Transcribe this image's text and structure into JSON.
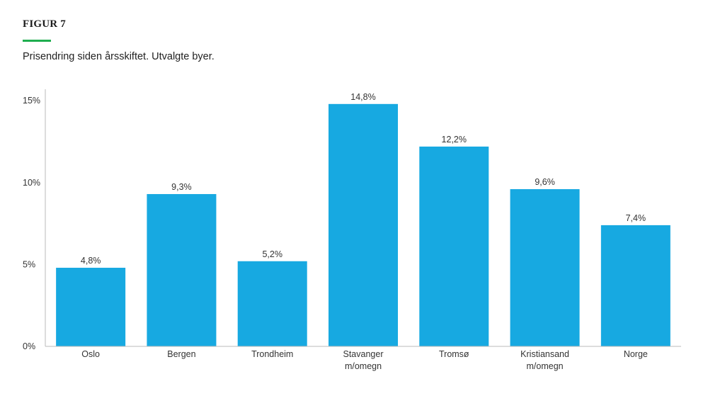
{
  "figure": {
    "label": "FIGUR 7",
    "subtitle": "Prisendring siden årsskiftet. Utvalgte byer.",
    "accent_color": "#1fae4f"
  },
  "chart_data": {
    "type": "bar",
    "categories": [
      [
        "Oslo"
      ],
      [
        "Bergen"
      ],
      [
        "Trondheim"
      ],
      [
        "Stavanger",
        "m/omegn"
      ],
      [
        "Tromsø"
      ],
      [
        "Kristiansand",
        "m/omegn"
      ],
      [
        "Norge"
      ]
    ],
    "values": [
      4.8,
      9.3,
      5.2,
      14.8,
      12.2,
      9.6,
      7.4
    ],
    "data_labels": [
      "4,8%",
      "9,3%",
      "5,2%",
      "14,8%",
      "12,2%",
      "9,6%",
      "7,4%"
    ],
    "yticks": [
      0,
      5,
      10,
      15
    ],
    "ytick_labels": [
      "0%",
      "5%",
      "10%",
      "15%"
    ],
    "ylim": [
      0,
      15.7
    ],
    "bar_color": "#17a9e1",
    "axis_color": "#bbbbbb",
    "grid": false,
    "legend": "none"
  }
}
